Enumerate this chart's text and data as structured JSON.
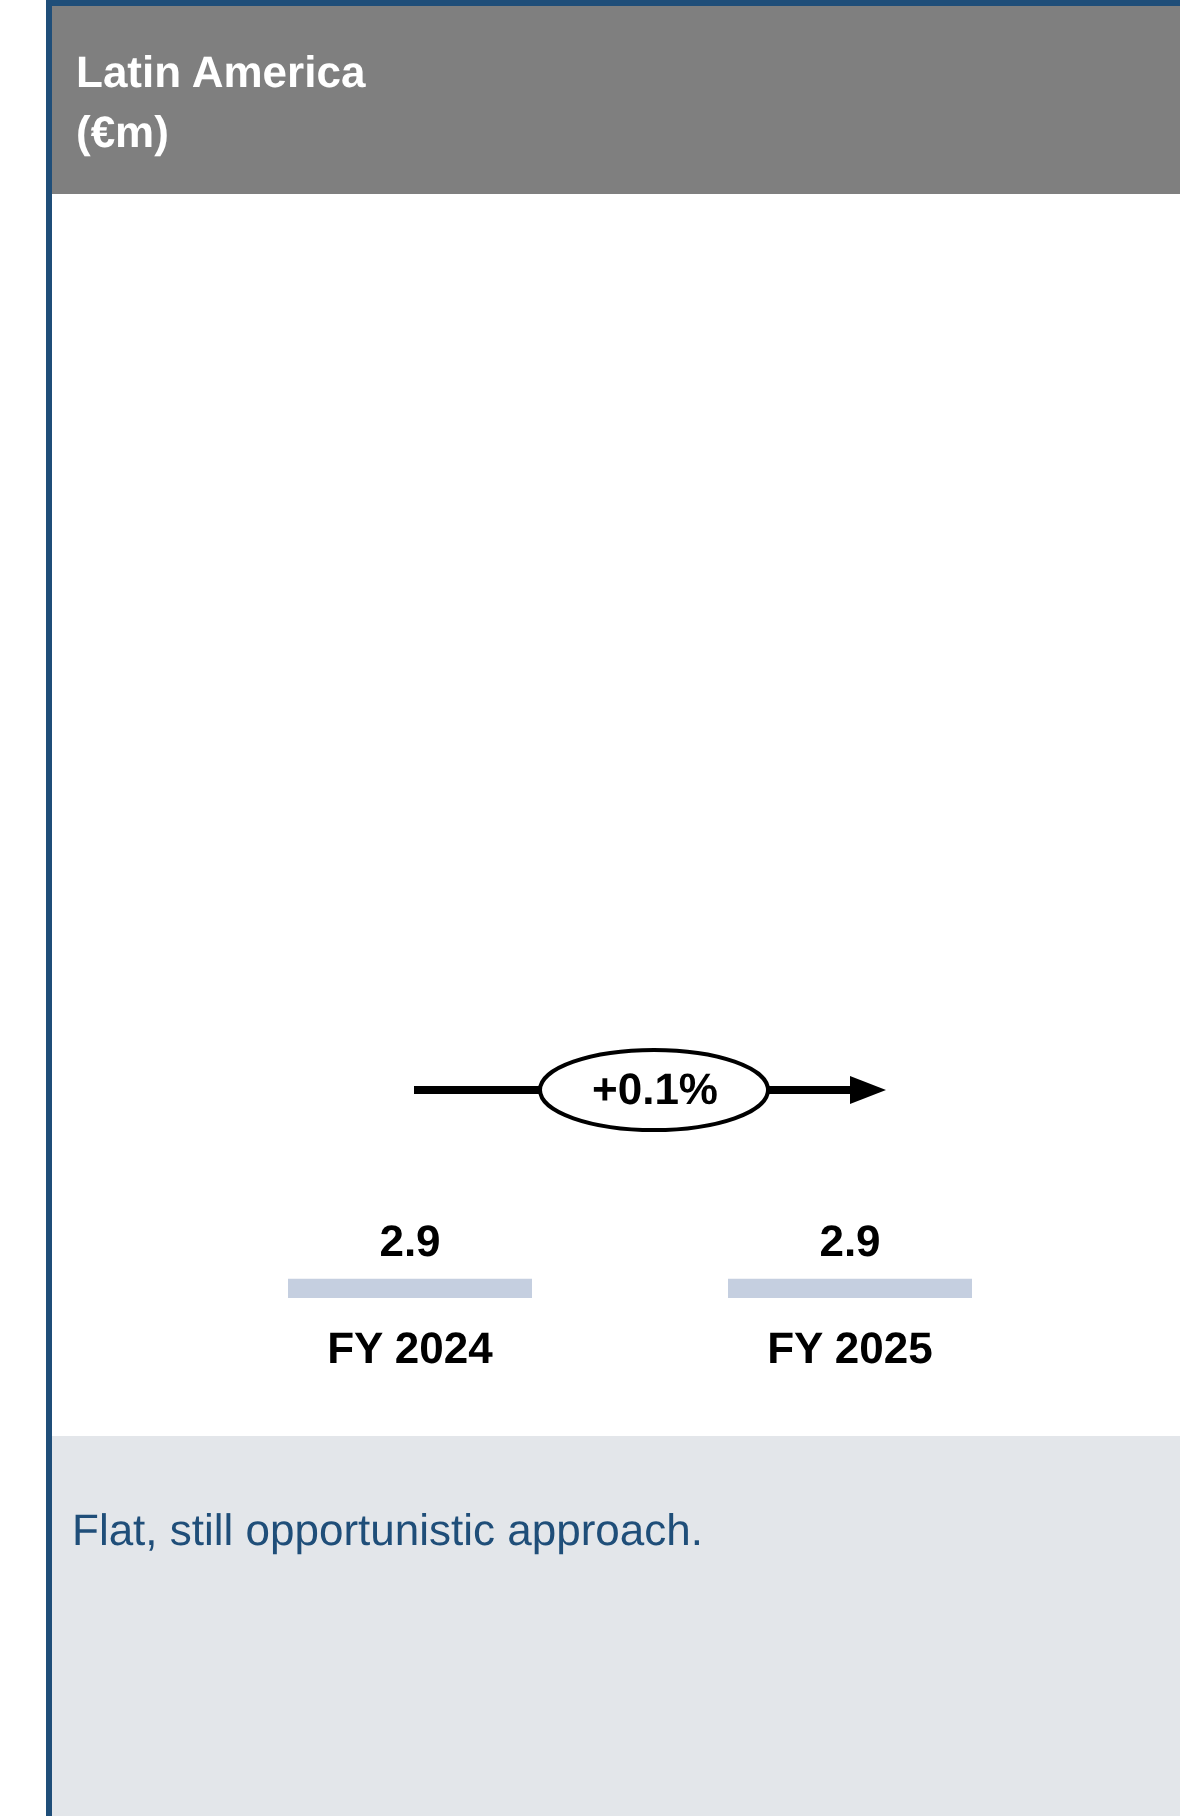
{
  "chart_data": {
    "type": "bar",
    "title": "Latin America\n(€m)",
    "categories": [
      "FY 2024",
      "FY 2025"
    ],
    "values": [
      2.9,
      2.9
    ],
    "color": "#c5cfe0",
    "data_labels": true,
    "tick_labels": "x",
    "annotations": [
      "+0.1%",
      "Flat, still opportunistic approach."
    ]
  }
}
